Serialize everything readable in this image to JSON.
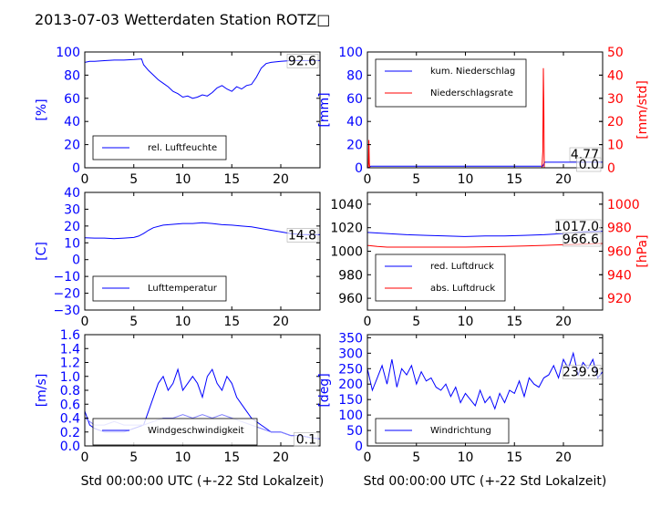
{
  "title": "2013-07-03 Wetterdaten Station ROTZ□",
  "colors": {
    "primary": "#0000ff",
    "secondary": "#ff0000",
    "axes": "#000000",
    "background": "#ffffff"
  },
  "chart_data": [
    {
      "type": "line",
      "id": "humidity",
      "ylabel": "[%]",
      "xlim": [
        0,
        24
      ],
      "ylim": [
        0,
        100
      ],
      "xticks": [
        "0",
        "5",
        "10",
        "15",
        "20"
      ],
      "yticks": [
        "0",
        "20",
        "40",
        "60",
        "80",
        "100"
      ],
      "legend": "bottom-left",
      "current_value": "92.6",
      "series": [
        {
          "name": "rel. Luftfeuchte",
          "color": "#0000ff",
          "x": [
            0,
            0.5,
            1,
            2,
            3,
            4,
            5,
            5.8,
            6,
            6.5,
            7,
            7.5,
            8,
            8.5,
            9,
            9.5,
            10,
            10.5,
            11,
            11.5,
            12,
            12.5,
            13,
            13.5,
            14,
            14.5,
            15,
            15.5,
            16,
            16.5,
            17,
            17.5,
            18,
            18.5,
            19,
            20,
            21,
            22,
            23,
            24
          ],
          "y": [
            91,
            92,
            92,
            92.5,
            93,
            93,
            93.5,
            94,
            89,
            84,
            80,
            76,
            73,
            70,
            66,
            64,
            61,
            62,
            60,
            61,
            63,
            62,
            65,
            69,
            71,
            68,
            66,
            70,
            68,
            71,
            72,
            78,
            86,
            90,
            91,
            92,
            92.5,
            92.6,
            92.6,
            92.6
          ]
        }
      ]
    },
    {
      "type": "line",
      "id": "precipitation",
      "ylabel": "[mm]",
      "ylabel_right": "[mm/std]",
      "xlim": [
        0,
        24
      ],
      "ylim": [
        0,
        100
      ],
      "ylim_right": [
        0,
        50
      ],
      "xticks": [
        "0",
        "5",
        "10",
        "15",
        "20"
      ],
      "yticks": [
        "0",
        "20",
        "40",
        "60",
        "80",
        "100"
      ],
      "yticks_right": [
        "0",
        "10",
        "20",
        "30",
        "40",
        "50"
      ],
      "legend": "top-left",
      "current_values": [
        "4.77",
        "0.0"
      ],
      "series": [
        {
          "name": "kum. Niederschlag",
          "color": "#0000ff",
          "axis": "left",
          "x": [
            0,
            0.2,
            0.3,
            0.35,
            1,
            17.9,
            18,
            18.1,
            24
          ],
          "y": [
            0,
            0.5,
            1.2,
            1.4,
            1.4,
            1.4,
            3.2,
            4.77,
            4.77
          ]
        },
        {
          "name": "Niederschlagsrate",
          "color": "#ff0000",
          "axis": "right",
          "x": [
            0,
            0.1,
            0.15,
            0.2,
            0.25,
            0.3,
            1,
            17.8,
            17.9,
            17.95,
            18,
            18.05,
            18.1,
            18.2,
            24
          ],
          "y": [
            0,
            0,
            12,
            2,
            0,
            0,
            0,
            0,
            7,
            43,
            28,
            0,
            0,
            0,
            0
          ]
        }
      ]
    },
    {
      "type": "line",
      "id": "temperature",
      "ylabel": "[C]",
      "xlim": [
        0,
        24
      ],
      "ylim": [
        -30,
        40
      ],
      "xticks": [
        "0",
        "5",
        "10",
        "15",
        "20"
      ],
      "yticks": [
        "−30",
        "−20",
        "−10",
        "0",
        "10",
        "20",
        "30",
        "40"
      ],
      "legend": "bottom-left",
      "current_value": "14.8",
      "series": [
        {
          "name": "Lufttemperatur",
          "color": "#0000ff",
          "x": [
            0,
            1,
            2,
            3,
            4,
            5,
            5.5,
            6,
            6.5,
            7,
            8,
            9,
            10,
            11,
            12,
            13,
            14,
            15,
            16,
            17,
            18,
            19,
            20,
            21,
            22,
            23,
            24
          ],
          "y": [
            13,
            12.8,
            12.8,
            12.5,
            12.8,
            13.2,
            14,
            15.5,
            17.5,
            19,
            20.5,
            21,
            21.5,
            21.5,
            22,
            21.5,
            20.8,
            20.5,
            20,
            19.5,
            18.5,
            17.5,
            16.5,
            15.5,
            15,
            14.8,
            14.8
          ]
        }
      ]
    },
    {
      "type": "line",
      "id": "pressure",
      "ylabel_right": "[hPa]",
      "xlim": [
        0,
        24
      ],
      "ylim": [
        950,
        1050
      ],
      "ylim_right": [
        910,
        1010
      ],
      "xticks": [
        "0",
        "5",
        "10",
        "15",
        "20"
      ],
      "yticks": [
        "960",
        "980",
        "1000",
        "1020",
        "1040"
      ],
      "yticks_right": [
        "920",
        "940",
        "960",
        "980",
        "1000"
      ],
      "legend": "bottom-left",
      "current_values": [
        "1017.0",
        "966.6"
      ],
      "series": [
        {
          "name": "red. Luftdruck",
          "color": "#0000ff",
          "axis": "left",
          "x": [
            0,
            2,
            4,
            6,
            8,
            10,
            12,
            14,
            16,
            18,
            20,
            22,
            24
          ],
          "y": [
            1016,
            1015,
            1014,
            1013.5,
            1013,
            1012.5,
            1013,
            1013,
            1013.5,
            1014,
            1015,
            1016.5,
            1017
          ]
        },
        {
          "name": "abs. Luftdruck",
          "color": "#ff0000",
          "axis": "right",
          "x": [
            0,
            1,
            2,
            4,
            6,
            8,
            10,
            12,
            14,
            16,
            18,
            20,
            22,
            24
          ],
          "y": [
            965,
            964,
            963.5,
            963.5,
            963.5,
            963.5,
            963.5,
            963.8,
            964,
            964.5,
            965,
            965.5,
            966,
            966.6
          ]
        }
      ]
    },
    {
      "type": "line",
      "id": "windspeed",
      "ylabel": "[m/s]",
      "xlabel": "Std 00:00:00 UTC (+-22 Std Lokalzeit)",
      "xlim": [
        0,
        24
      ],
      "ylim": [
        0,
        1.6
      ],
      "xticks": [
        "0",
        "5",
        "10",
        "15",
        "20"
      ],
      "yticks": [
        "0.0",
        "0.2",
        "0.4",
        "0.6",
        "0.8",
        "1.0",
        "1.2",
        "1.4",
        "1.6"
      ],
      "legend": "bottom-center",
      "current_value": "0.1",
      "series": [
        {
          "name": "Windgeschwindigkeit",
          "color": "#0000ff",
          "x": [
            0,
            0.5,
            1,
            2,
            3,
            4,
            5,
            6,
            6.5,
            7,
            7.5,
            8,
            8.5,
            9,
            9.5,
            10,
            10.5,
            11,
            11.5,
            12,
            12.5,
            13,
            13.5,
            14,
            14.5,
            15,
            15.5,
            16,
            16.5,
            17,
            17.5,
            18,
            18.5,
            19,
            20,
            21,
            22,
            23,
            24
          ],
          "y": [
            0.5,
            0.3,
            0.25,
            0.2,
            0.2,
            0.2,
            0.25,
            0.3,
            0.5,
            0.7,
            0.9,
            1.0,
            0.8,
            0.9,
            1.1,
            0.8,
            0.9,
            1.0,
            0.9,
            0.7,
            1.0,
            1.1,
            0.9,
            0.8,
            1.0,
            0.9,
            0.7,
            0.6,
            0.5,
            0.4,
            0.35,
            0.3,
            0.25,
            0.2,
            0.2,
            0.15,
            0.15,
            0.12,
            0.1
          ]
        },
        {
          "name": "",
          "color": "#8080ff",
          "x": [
            0,
            1,
            2,
            3,
            4,
            5,
            6,
            7,
            8,
            9,
            10,
            11,
            12,
            13,
            14,
            15,
            16,
            17,
            18,
            19,
            20,
            21,
            22,
            23,
            24
          ],
          "y": [
            0.4,
            0.3,
            0.3,
            0.35,
            0.3,
            0.3,
            0.3,
            0.35,
            0.4,
            0.4,
            0.45,
            0.4,
            0.45,
            0.4,
            0.45,
            0.4,
            0.35,
            0.3,
            0.25,
            0.2,
            0.2,
            0.15,
            0.15,
            0.12,
            0.1
          ]
        }
      ]
    },
    {
      "type": "line",
      "id": "winddirection",
      "ylabel": "[deg]",
      "xlabel": "Std 00:00:00 UTC (+-22 Std Lokalzeit)",
      "xlim": [
        0,
        24
      ],
      "ylim": [
        0,
        360
      ],
      "xticks": [
        "0",
        "5",
        "10",
        "15",
        "20"
      ],
      "yticks": [
        "0",
        "50",
        "100",
        "150",
        "200",
        "250",
        "300",
        "350"
      ],
      "legend": "bottom-left",
      "current_value": "239.9",
      "series": [
        {
          "name": "Windrichtung",
          "color": "#0000ff",
          "x": [
            0,
            0.5,
            1,
            1.5,
            2,
            2.5,
            3,
            3.5,
            4,
            4.5,
            5,
            5.5,
            6,
            6.5,
            7,
            7.5,
            8,
            8.5,
            9,
            9.5,
            10,
            10.5,
            11,
            11.5,
            12,
            12.5,
            13,
            13.5,
            14,
            14.5,
            15,
            15.5,
            16,
            16.5,
            17,
            17.5,
            18,
            18.5,
            19,
            19.5,
            20,
            20.5,
            21,
            21.5,
            22,
            22.5,
            23,
            23.5,
            24
          ],
          "y": [
            250,
            180,
            220,
            260,
            200,
            280,
            190,
            250,
            230,
            260,
            200,
            240,
            210,
            220,
            190,
            180,
            200,
            160,
            190,
            140,
            170,
            150,
            130,
            180,
            140,
            160,
            120,
            170,
            140,
            180,
            170,
            210,
            160,
            220,
            200,
            190,
            220,
            230,
            260,
            220,
            280,
            250,
            300,
            230,
            270,
            250,
            280,
            220,
            240
          ]
        }
      ]
    }
  ]
}
